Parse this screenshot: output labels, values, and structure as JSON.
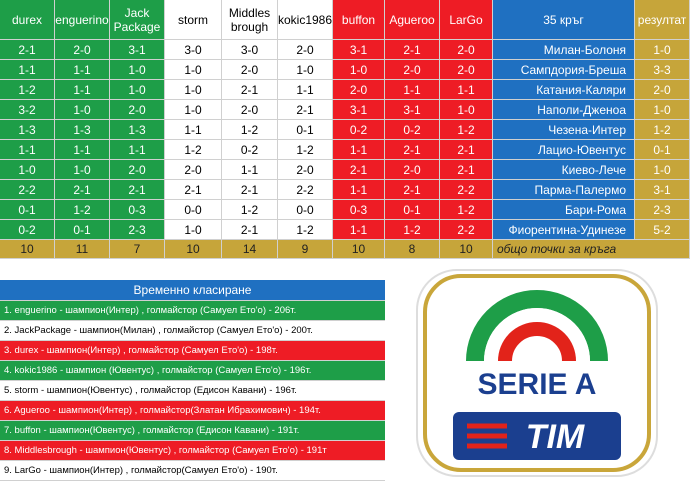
{
  "table": {
    "header": [
      "durex",
      "enguerino",
      "Jack Package",
      "storm",
      "Middles brough",
      "kokic1986",
      "buffon",
      "Agueroo",
      "LarGo",
      "35 кръг",
      "резултат"
    ],
    "rows": [
      [
        "2-1",
        "2-0",
        "3-1",
        "3-0",
        "3-0",
        "2-0",
        "3-1",
        "2-1",
        "2-0",
        "Милан-Болоня",
        "1-0"
      ],
      [
        "1-1",
        "1-1",
        "1-0",
        "1-0",
        "2-0",
        "1-0",
        "1-0",
        "2-0",
        "2-0",
        "Сампдория-Бреша",
        "3-3"
      ],
      [
        "1-2",
        "1-1",
        "1-0",
        "1-0",
        "2-1",
        "1-1",
        "2-0",
        "1-1",
        "1-1",
        "Катания-Каляри",
        "2-0"
      ],
      [
        "3-2",
        "1-0",
        "2-0",
        "1-0",
        "2-0",
        "2-1",
        "3-1",
        "3-1",
        "1-0",
        "Наполи-Дженоа",
        "1-0"
      ],
      [
        "1-3",
        "1-3",
        "1-3",
        "1-1",
        "1-2",
        "0-1",
        "0-2",
        "0-2",
        "1-2",
        "Чезена-Интер",
        "1-2"
      ],
      [
        "1-1",
        "1-1",
        "1-1",
        "1-2",
        "0-2",
        "1-2",
        "1-1",
        "2-1",
        "2-1",
        "Лацио-Ювентус",
        "0-1"
      ],
      [
        "1-0",
        "1-0",
        "2-0",
        "2-0",
        "1-1",
        "2-0",
        "2-1",
        "2-0",
        "2-1",
        "Киево-Лече",
        "1-0"
      ],
      [
        "2-2",
        "2-1",
        "2-1",
        "2-1",
        "2-1",
        "2-2",
        "1-1",
        "2-1",
        "2-2",
        "Парма-Палермо",
        "3-1"
      ],
      [
        "0-1",
        "1-2",
        "0-3",
        "0-0",
        "1-2",
        "0-0",
        "0-3",
        "0-1",
        "1-2",
        "Бари-Рома",
        "2-3"
      ],
      [
        "0-2",
        "0-1",
        "2-3",
        "1-0",
        "2-1",
        "1-2",
        "1-1",
        "1-2",
        "2-2",
        "Фиорентина-Удинезе",
        "5-2"
      ]
    ],
    "totals": [
      10,
      11,
      7,
      10,
      14,
      9,
      10,
      8,
      10,
      "общо точки за кръга"
    ]
  },
  "standings": {
    "title": "Временно класиране",
    "items": [
      "1. enguerino - шампион(Интер) , голмайстор (Самуел Ето'о) - 206т.",
      "2. JackPackage - шампион(Милан) , голмайстор (Самуел Ето'о) - 200т.",
      "3. durex - шампион(Интер) , голмайстор (Самуел Ето'о) - 198т.",
      "4. kokic1986 - шампион (Ювентус) , голмайстор (Самуел Ето'о) - 196т.",
      "5. storm - шампион(Ювентус) , голмайстор (Едисон Кавани) - 196т.",
      "6. Agueroo - шампион(Интер) , голмайстор(Златан Ибрахимович) - 194т.",
      "7. buffon - шампион(Ювентус) , голмайстор (Едисон Кавани) - 191т.",
      "8. Middlesbrough - шампион(Ювентус) , голмайстор (Самуел Ето'о) - 191т",
      "9. LarGo - шампион(Интер) , голмайстор(Самуел Ето'о) - 190т."
    ]
  },
  "logo": {
    "title": "SERIE A",
    "sponsor": "TIM"
  }
}
